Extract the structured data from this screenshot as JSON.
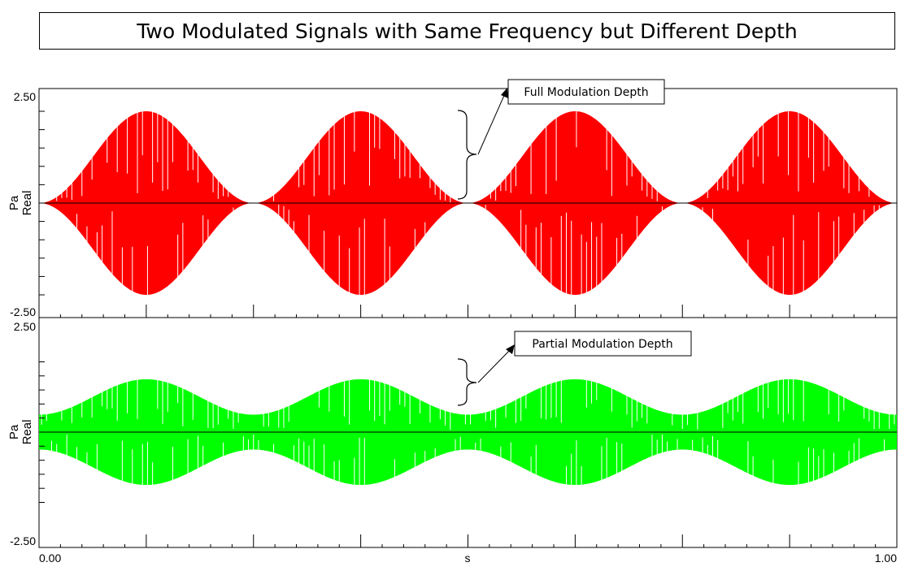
{
  "chart_data": [
    {
      "type": "line",
      "title": "Two Modulated Signals with Same Frequency but Different Depth",
      "xlabel": "s",
      "ylabel": [
        "Pa",
        "Real"
      ],
      "xlim": [
        0.0,
        1.0
      ],
      "ylim": [
        -2.5,
        2.5
      ],
      "x_tick_labels": [
        "0.00",
        "1.00"
      ],
      "y_tick_labels": [
        "2.50",
        "-2.50"
      ],
      "grid": false,
      "series": [
        {
          "color": "#ff0000",
          "carrier_amplitude": 2.5,
          "modulation_depth": 1.0,
          "modulation_frequency_hz": 4,
          "envelope_minima_s": [
            0.0,
            0.25,
            0.5,
            0.75,
            1.0
          ],
          "envelope_maxima_s": [
            0.125,
            0.375,
            0.625,
            0.875
          ],
          "envelope_max": 2.5,
          "envelope_min": 0.0
        }
      ],
      "annotations": [
        {
          "text": "Full Modulation Depth"
        }
      ]
    },
    {
      "type": "line",
      "xlabel": "s",
      "ylabel": [
        "Pa",
        "Real"
      ],
      "xlim": [
        0.0,
        1.0
      ],
      "ylim": [
        -2.5,
        2.5
      ],
      "x_tick_labels": [
        "0.00",
        "1.00"
      ],
      "y_tick_labels": [
        "2.50",
        "-2.50"
      ],
      "grid": false,
      "series": [
        {
          "color": "#00ff00",
          "carrier_amplitude": 1.88,
          "modulation_depth": 0.67,
          "modulation_frequency_hz": 4,
          "envelope_minima_s": [
            0.0,
            0.25,
            0.5,
            0.75,
            1.0
          ],
          "envelope_maxima_s": [
            0.125,
            0.375,
            0.625,
            0.875
          ],
          "envelope_max": 1.88,
          "envelope_min": 0.62
        }
      ],
      "annotations": [
        {
          "text": "Partial Modulation Depth"
        }
      ]
    }
  ]
}
